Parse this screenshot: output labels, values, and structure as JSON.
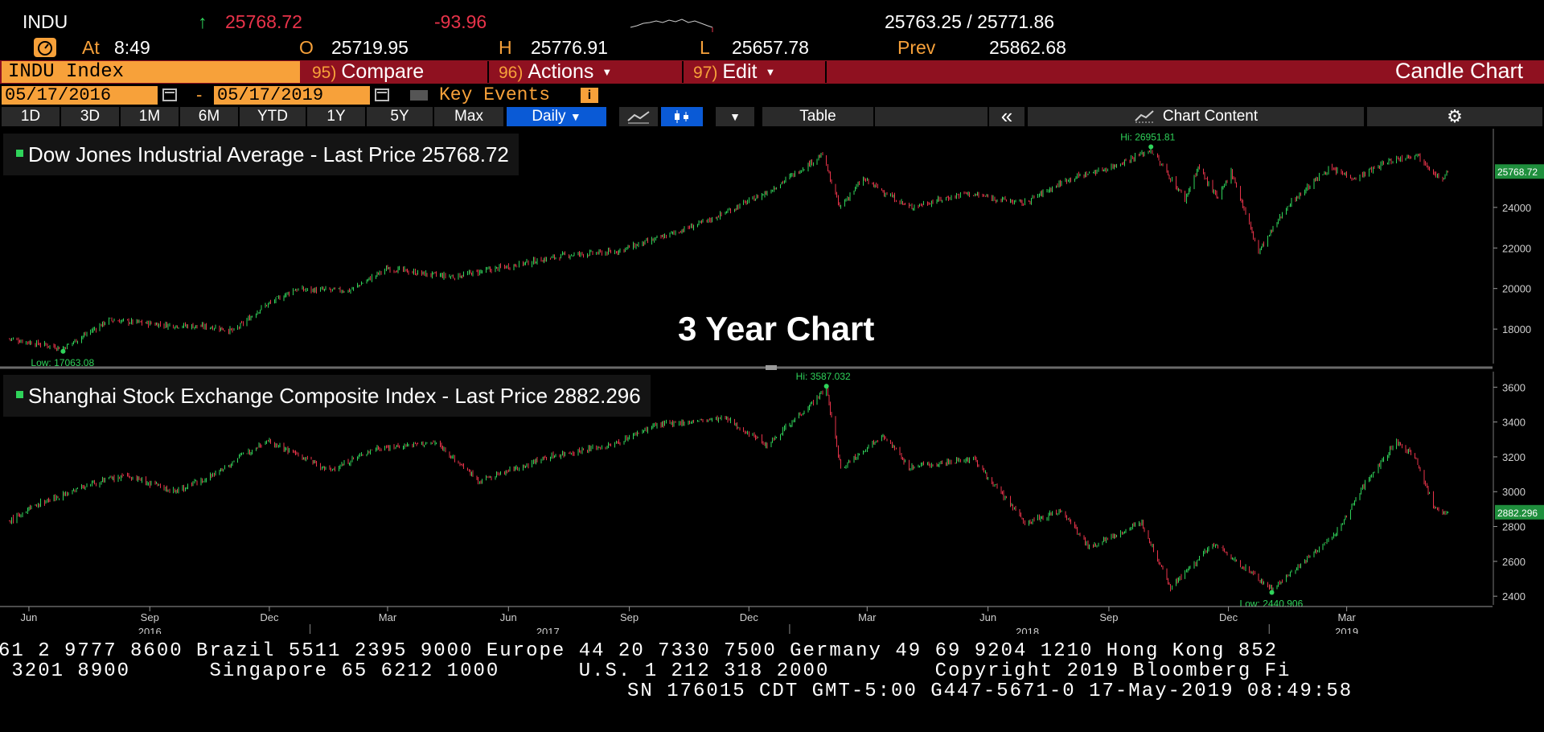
{
  "quote": {
    "ticker": "INDU",
    "arrow": "↑",
    "last": "25768.72",
    "change": "-93.96",
    "bid_ask": "25763.25 / 25771.86",
    "at_label": "At",
    "time": "8:49",
    "open_label": "O",
    "open": "25719.95",
    "high_label": "H",
    "high": "25776.91",
    "low_label": "L",
    "low": "25657.78",
    "prev_label": "Prev",
    "prev": "25862.68"
  },
  "menu": {
    "security": "INDU Index",
    "compare_num": "95)",
    "compare": "Compare",
    "actions_num": "96)",
    "actions": "Actions",
    "edit_num": "97)",
    "edit": "Edit",
    "chart_type": "Candle Chart"
  },
  "range": {
    "start": "05/17/2016",
    "dash": "-",
    "end": "05/17/2019",
    "key_events": "Key Events",
    "info_icon": "i"
  },
  "toolbar": {
    "periods": [
      "1D",
      "3D",
      "1M",
      "6M",
      "YTD",
      "1Y",
      "5Y",
      "Max"
    ],
    "frequency": "Daily",
    "table": "Table",
    "collapse": "«",
    "chart_content": "Chart Content"
  },
  "overlay_title": "3 Year Chart",
  "footer": {
    "line1": "61 2 9777 8600 Brazil 5511 2395 9000 Europe 44 20 7330 7500 Germany 49 69 9204 1210 Hong Kong 852",
    "line2": " 3201 8900      Singapore 65 6212 1000      U.S. 1 212 318 2000        Copyright 2019 Bloomberg Fi",
    "line3": "SN 176015 CDT  GMT-5:00 G447-5671-0 17-May-2019 08:49:58"
  },
  "colors": {
    "up": "#2fd35a",
    "down": "#e8334a",
    "accent": "#f7a13a",
    "menu_bar": "#8f1120",
    "selected": "#0a5ad6"
  },
  "chart_data": [
    {
      "type": "candlestick",
      "legend": "Dow Jones Industrial Average - Last Price 25768.72",
      "last_price_label": "25768.72",
      "hi_label": "Hi: 26951.81",
      "low_label": "Low: 17063.08",
      "ylim": [
        16300,
        27800
      ],
      "y_ticks": [
        18000,
        20000,
        22000,
        24000
      ],
      "x": [
        "2016-05-17",
        "2016-06-27",
        "2016-08-01",
        "2016-09-15",
        "2016-10-20",
        "2016-11-04",
        "2016-11-25",
        "2016-12-20",
        "2017-01-31",
        "2017-03-01",
        "2017-03-31",
        "2017-04-20",
        "2017-06-01",
        "2017-07-15",
        "2017-08-20",
        "2017-09-20",
        "2017-10-31",
        "2017-12-15",
        "2018-01-26",
        "2018-02-08",
        "2018-02-26",
        "2018-04-02",
        "2018-05-15",
        "2018-06-28",
        "2018-08-01",
        "2018-09-01",
        "2018-10-03",
        "2018-10-29",
        "2018-11-08",
        "2018-11-23",
        "2018-12-03",
        "2018-12-24",
        "2019-01-15",
        "2019-02-15",
        "2019-03-08",
        "2019-04-01",
        "2019-04-23",
        "2019-05-13",
        "2019-05-17"
      ],
      "y": [
        17530,
        17063,
        18450,
        18200,
        18100,
        17900,
        19050,
        19950,
        19900,
        21000,
        20700,
        20580,
        21100,
        21650,
        21800,
        22400,
        23350,
        24750,
        26600,
        24000,
        25400,
        24000,
        24700,
        24200,
        25400,
        25950,
        26828,
        24400,
        26000,
        24400,
        25800,
        21800,
        24100,
        25900,
        25450,
        26250,
        26650,
        25300,
        25768
      ]
    },
    {
      "type": "candlestick",
      "legend": "Shanghai Stock Exchange Composite Index - Last Price 2882.296",
      "last_price_label": "2882.296",
      "hi_label": "Hi: 3587.032",
      "low_label": "Low: 2440.906",
      "ylim": [
        2350,
        3680
      ],
      "y_ticks": [
        2400,
        2600,
        2800,
        3000,
        3200,
        3400,
        3600
      ],
      "x": [
        "2016-05-17",
        "2016-06-08",
        "2016-07-20",
        "2016-08-15",
        "2016-09-20",
        "2016-10-20",
        "2016-11-29",
        "2017-01-16",
        "2017-02-20",
        "2017-04-07",
        "2017-05-10",
        "2017-07-01",
        "2017-08-20",
        "2017-09-20",
        "2017-11-13",
        "2017-12-15",
        "2018-01-29",
        "2018-02-09",
        "2018-03-13",
        "2018-04-02",
        "2018-05-21",
        "2018-06-29",
        "2018-07-27",
        "2018-08-17",
        "2018-09-26",
        "2018-10-18",
        "2018-11-20",
        "2019-01-03",
        "2019-02-20",
        "2019-03-15",
        "2019-04-08",
        "2019-04-22",
        "2019-05-07",
        "2019-05-17"
      ],
      "y": [
        2830,
        2930,
        3050,
        3090,
        3000,
        3100,
        3300,
        3120,
        3250,
        3280,
        3060,
        3200,
        3270,
        3380,
        3420,
        3270,
        3587,
        3130,
        3330,
        3140,
        3190,
        2820,
        2890,
        2680,
        2820,
        2450,
        2700,
        2440,
        2750,
        3050,
        3288,
        3200,
        2900,
        2882
      ]
    }
  ],
  "x_axis": {
    "months": [
      {
        "label": "Jun",
        "date": "2016-06-01"
      },
      {
        "label": "Sep",
        "date": "2016-09-01"
      },
      {
        "label": "Dec",
        "date": "2016-12-01"
      },
      {
        "label": "Mar",
        "date": "2017-03-01"
      },
      {
        "label": "Jun",
        "date": "2017-06-01"
      },
      {
        "label": "Sep",
        "date": "2017-09-01"
      },
      {
        "label": "Dec",
        "date": "2017-12-01"
      },
      {
        "label": "Mar",
        "date": "2018-03-01"
      },
      {
        "label": "Jun",
        "date": "2018-06-01"
      },
      {
        "label": "Sep",
        "date": "2018-09-01"
      },
      {
        "label": "Dec",
        "date": "2018-12-01"
      },
      {
        "label": "Mar",
        "date": "2019-03-01"
      }
    ],
    "years": [
      {
        "label": "2016",
        "date": "2016-09-01"
      },
      {
        "label": "2017",
        "date": "2017-07-01"
      },
      {
        "label": "2018",
        "date": "2018-07-01"
      },
      {
        "label": "2019",
        "date": "2019-03-01"
      }
    ],
    "range": [
      "2016-05-10",
      "2019-06-20"
    ]
  }
}
